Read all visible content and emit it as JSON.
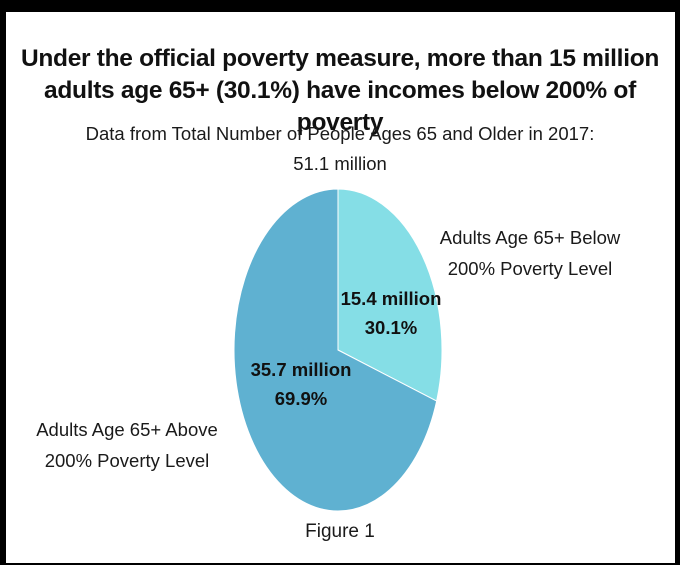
{
  "chart_data": {
    "type": "pie",
    "title": "Under the official poverty measure, more than 15 million adults age 65+ (30.1%) have incomes below 200% of poverty",
    "subtitle_lines": [
      "Data from Total Number of People Ages 65 and Older in 2017:",
      "51.1 million"
    ],
    "slices": [
      {
        "name_lines": [
          "Adults Age 65+ Below",
          "200% Poverty Level"
        ],
        "value": 15.4,
        "value_label": "15.4 million",
        "percent_label": "30.1%",
        "percent": 30.1,
        "color": "#85dee6"
      },
      {
        "name_lines": [
          "Adults Age 65+ Above",
          "200% Poverty Level"
        ],
        "value": 35.7,
        "value_label": "35.7 million",
        "percent_label": "69.9%",
        "percent": 69.9,
        "color": "#5fb1d1"
      }
    ],
    "caption": "Figure 1"
  }
}
